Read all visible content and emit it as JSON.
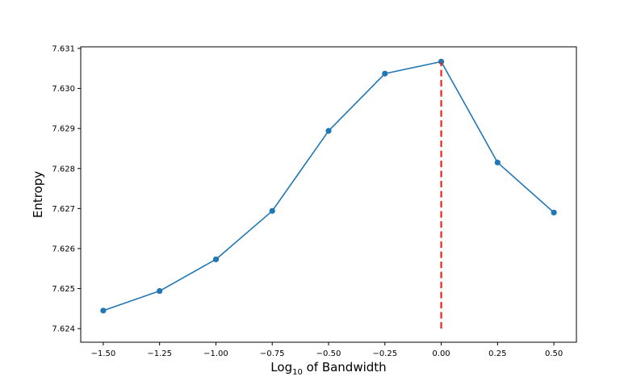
{
  "chart_data": {
    "type": "line",
    "title": "",
    "xlabel": {
      "prefix": "Log",
      "subscript": "10",
      "suffix": " of Bandwidth"
    },
    "ylabel": "Entropy",
    "xlim": [
      -1.6,
      0.6
    ],
    "ylim": [
      7.62366,
      7.63104
    ],
    "x_ticks": [
      -1.5,
      -1.25,
      -1.0,
      -0.75,
      -0.5,
      -0.25,
      0.0,
      0.25,
      0.5
    ],
    "x_tick_labels": [
      "−1.50",
      "−1.25",
      "−1.00",
      "−0.75",
      "−0.50",
      "−0.25",
      "0.00",
      "0.25",
      "0.50"
    ],
    "y_ticks": [
      7.624,
      7.625,
      7.626,
      7.627,
      7.628,
      7.629,
      7.63,
      7.631
    ],
    "y_tick_labels": [
      "7.624",
      "7.625",
      "7.626",
      "7.627",
      "7.628",
      "7.629",
      "7.630",
      "7.631"
    ],
    "grid": false,
    "series": [
      {
        "x": [
          -1.5,
          -1.25,
          -1.0,
          -0.75,
          -0.5,
          -0.25,
          0.0,
          0.25,
          0.5
        ],
        "y": [
          7.62445,
          7.62494,
          7.62573,
          7.62694,
          7.62894,
          7.63037,
          7.63067,
          7.62815,
          7.6269
        ],
        "color": "#1f77b4",
        "marker": "circle"
      }
    ],
    "vline": {
      "x": 0.0,
      "y_from": 7.624,
      "y_to": 7.63067,
      "color": "#e8261c",
      "style": "dashed"
    }
  }
}
